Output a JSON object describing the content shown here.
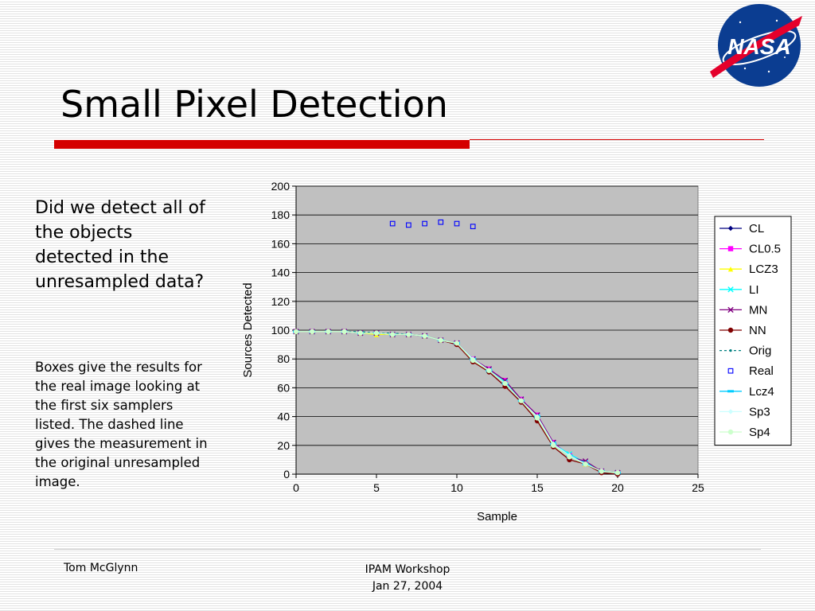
{
  "slide": {
    "title": "Small Pixel Detection",
    "question": "Did we detect all of the objects detected in the unresampled data?",
    "explanation": "Boxes give the results for the real image looking at the first six samplers listed.  The dashed line gives the measurement in the original unresampled image.",
    "logo_text": "NASA",
    "footer_author": "Tom McGlynn",
    "footer_event_line1": "IPAM Workshop",
    "footer_event_line2": "Jan 27, 2004"
  },
  "colors": {
    "accent_red": "#d40000",
    "plot_bg": "#c0c0c0",
    "nasa_blue": "#0b3d91"
  },
  "chart_data": {
    "type": "line",
    "xlabel": "Sample",
    "ylabel": "Sources Detected",
    "xlim": [
      0,
      25
    ],
    "ylim": [
      0,
      200
    ],
    "xticks": [
      0,
      5,
      10,
      15,
      20,
      25
    ],
    "yticks": [
      0,
      20,
      40,
      60,
      80,
      100,
      120,
      140,
      160,
      180,
      200
    ],
    "grid": "horizontal",
    "legend_position": "right",
    "x": [
      0,
      1,
      2,
      3,
      4,
      5,
      6,
      7,
      8,
      9,
      10,
      11,
      12,
      13,
      14,
      15,
      16,
      17,
      18,
      19,
      20
    ],
    "series": [
      {
        "name": "CL",
        "color": "#000080",
        "marker": "diamond",
        "values": [
          99,
          99,
          99,
          99,
          98,
          98,
          97,
          97,
          96,
          93,
          91,
          80,
          72,
          63,
          51,
          40,
          22,
          12,
          7,
          2,
          1
        ]
      },
      {
        "name": "CL0.5",
        "color": "#ff00ff",
        "marker": "square",
        "values": [
          99,
          99,
          99,
          99,
          98,
          98,
          97,
          97,
          96,
          93,
          91,
          80,
          73,
          65,
          52,
          41,
          22,
          13,
          8,
          2,
          1
        ]
      },
      {
        "name": "LCZ3",
        "color": "#ffff00",
        "marker": "triangle",
        "values": [
          99,
          99,
          99,
          99,
          98,
          97,
          97,
          97,
          96,
          93,
          91,
          79,
          72,
          63,
          51,
          39,
          20,
          12,
          7,
          2,
          1
        ]
      },
      {
        "name": "LI",
        "color": "#00ffff",
        "marker": "x",
        "values": [
          99,
          99,
          99,
          99,
          98,
          98,
          97,
          97,
          96,
          93,
          91,
          80,
          72,
          64,
          52,
          40,
          21,
          14,
          8,
          2,
          1
        ]
      },
      {
        "name": "MN",
        "color": "#800080",
        "marker": "x",
        "values": [
          99,
          99,
          99,
          99,
          98,
          98,
          97,
          97,
          96,
          93,
          91,
          80,
          73,
          65,
          52,
          41,
          22,
          12,
          9,
          2,
          1
        ]
      },
      {
        "name": "NN",
        "color": "#800000",
        "marker": "circle",
        "values": [
          99,
          99,
          99,
          99,
          98,
          98,
          97,
          97,
          96,
          93,
          90,
          78,
          71,
          61,
          50,
          37,
          19,
          10,
          7,
          1,
          0
        ]
      },
      {
        "name": "Orig",
        "color": "#008080",
        "marker": "dot",
        "dashed": true,
        "values": [
          99,
          99,
          99,
          99,
          99,
          98,
          98,
          97,
          96,
          93,
          91,
          80,
          72,
          63,
          51,
          40,
          21,
          12,
          7,
          2,
          1
        ]
      },
      {
        "name": "Real",
        "color": "#0000ff",
        "marker": "open-square",
        "line": false,
        "x": [
          6,
          7,
          8,
          9,
          10,
          11
        ],
        "values": [
          174,
          173,
          174,
          175,
          174,
          172
        ]
      },
      {
        "name": "Lcz4",
        "color": "#00ccff",
        "marker": "bar",
        "values": [
          99,
          99,
          99,
          99,
          98,
          98,
          97,
          97,
          96,
          93,
          91,
          80,
          72,
          63,
          51,
          40,
          21,
          13,
          7,
          2,
          1
        ]
      },
      {
        "name": "Sp3",
        "color": "#ccffff",
        "marker": "diamond",
        "values": [
          99,
          99,
          99,
          99,
          98,
          98,
          97,
          97,
          96,
          93,
          91,
          80,
          72,
          63,
          51,
          40,
          21,
          13,
          7,
          2,
          1
        ]
      },
      {
        "name": "Sp4",
        "color": "#ccffcc",
        "marker": "circle",
        "values": [
          99,
          99,
          99,
          99,
          98,
          98,
          97,
          97,
          96,
          93,
          91,
          79,
          72,
          63,
          51,
          39,
          20,
          12,
          7,
          2,
          1
        ]
      }
    ]
  }
}
